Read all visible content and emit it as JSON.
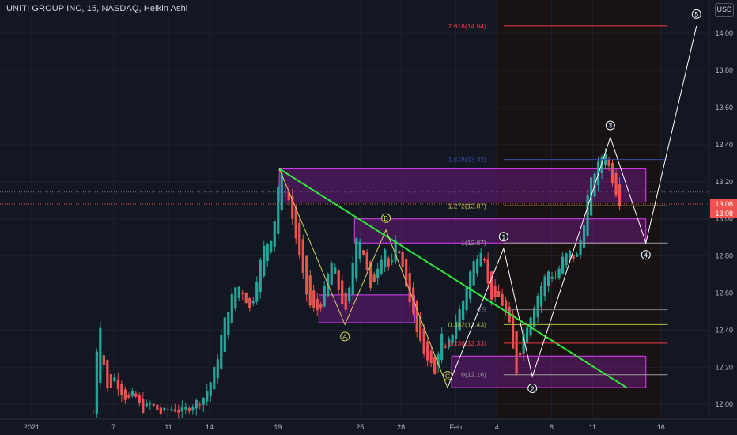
{
  "header": {
    "title": "UNITI GROUP INC, 15, NASDAQ, Heikin Ashi",
    "currency": "USD"
  },
  "colors": {
    "background": "#131722",
    "grid": "#1e222d",
    "up": "#26a69a",
    "down": "#ef5350",
    "trendline": "#2fe63b",
    "zone_fill": "#6a1a7a",
    "zone_stroke": "#e040fb",
    "wave": "#ffffff",
    "corrective": "#d4d45a",
    "fib_2618": "#f23645",
    "fib_1618": "#3949ab",
    "fib_1272": "#c7c74b",
    "fib_1": "#9e9e9e",
    "fib_05": "#787b86",
    "fib_0382": "#a8c040",
    "fib_0236": "#f23645",
    "fib_0": "#9e9e9e",
    "price_label": "#ef5350"
  },
  "chart_data": {
    "type": "candlestick",
    "title": "UNITI GROUP INC, 15, NASDAQ, Heikin Ashi",
    "ylabel": "USD",
    "ylim": [
      11.92,
      14.18
    ],
    "y_ticks": [
      "14.00",
      "13.80",
      "13.60",
      "13.40",
      "13.20",
      "13.00",
      "12.80",
      "12.60",
      "12.40",
      "12.20",
      "12.00"
    ],
    "x_ticks": [
      {
        "label": "2021",
        "t": 0
      },
      {
        "label": "7",
        "t": 6
      },
      {
        "label": "11",
        "t": 10
      },
      {
        "label": "14",
        "t": 13
      },
      {
        "label": "19",
        "t": 18
      },
      {
        "label": "25",
        "t": 24
      },
      {
        "label": "28",
        "t": 27
      },
      {
        "label": "Feb",
        "t": 31
      },
      {
        "label": "4",
        "t": 34
      },
      {
        "label": "8",
        "t": 38
      },
      {
        "label": "11",
        "t": 41
      },
      {
        "label": "16",
        "t": 46
      }
    ],
    "current_prices": [
      "13.08",
      "13.08"
    ],
    "price_path": [
      [
        4.5,
        11.95
      ],
      [
        4.8,
        12.35
      ],
      [
        5.0,
        12.45
      ],
      [
        5.3,
        12.2
      ],
      [
        5.6,
        12.05
      ],
      [
        6.0,
        12.15
      ],
      [
        6.5,
        12.08
      ],
      [
        7.0,
        12.02
      ],
      [
        7.5,
        12.06
      ],
      [
        8.0,
        11.97
      ],
      [
        8.7,
        12.0
      ],
      [
        9.5,
        11.95
      ],
      [
        10.3,
        11.98
      ],
      [
        11.0,
        11.96
      ],
      [
        11.8,
        12.0
      ],
      [
        12.5,
        12.03
      ],
      [
        13.0,
        12.1
      ],
      [
        13.5,
        12.22
      ],
      [
        14.0,
        12.42
      ],
      [
        14.5,
        12.55
      ],
      [
        15.0,
        12.65
      ],
      [
        15.5,
        12.6
      ],
      [
        16.0,
        12.5
      ],
      [
        16.5,
        12.7
      ],
      [
        17.0,
        12.85
      ],
      [
        17.5,
        12.9
      ],
      [
        17.9,
        13.05
      ],
      [
        18.1,
        13.26
      ],
      [
        18.4,
        13.2
      ],
      [
        18.8,
        13.1
      ],
      [
        19.2,
        12.95
      ],
      [
        19.6,
        12.78
      ],
      [
        20.0,
        12.62
      ],
      [
        20.4,
        12.52
      ],
      [
        20.8,
        12.5
      ],
      [
        21.2,
        12.55
      ],
      [
        21.6,
        12.68
      ],
      [
        22.0,
        12.78
      ],
      [
        22.5,
        12.6
      ],
      [
        23.0,
        12.48
      ],
      [
        23.4,
        12.72
      ],
      [
        23.8,
        12.95
      ],
      [
        24.3,
        12.8
      ],
      [
        24.8,
        12.6
      ],
      [
        25.3,
        12.75
      ],
      [
        25.8,
        12.85
      ],
      [
        26.2,
        12.7
      ],
      [
        26.7,
        12.9
      ],
      [
        27.2,
        12.7
      ],
      [
        27.7,
        12.55
      ],
      [
        28.1,
        12.4
      ],
      [
        28.5,
        12.3
      ],
      [
        29.0,
        12.25
      ],
      [
        29.5,
        12.15
      ],
      [
        29.9,
        12.4
      ],
      [
        30.2,
        12.28
      ],
      [
        30.6,
        12.35
      ],
      [
        31.0,
        12.45
      ],
      [
        31.5,
        12.55
      ],
      [
        32.0,
        12.7
      ],
      [
        32.5,
        12.8
      ],
      [
        33.0,
        12.86
      ],
      [
        33.4,
        12.62
      ],
      [
        33.8,
        12.55
      ],
      [
        34.2,
        12.58
      ],
      [
        34.6,
        12.5
      ],
      [
        35.0,
        12.4
      ],
      [
        35.3,
        12.22
      ],
      [
        35.5,
        12.16
      ],
      [
        35.8,
        12.35
      ],
      [
        36.3,
        12.45
      ],
      [
        36.8,
        12.55
      ],
      [
        37.3,
        12.65
      ],
      [
        37.8,
        12.72
      ],
      [
        38.3,
        12.68
      ],
      [
        38.8,
        12.78
      ],
      [
        39.3,
        12.82
      ],
      [
        39.8,
        12.78
      ],
      [
        40.3,
        12.95
      ],
      [
        40.7,
        13.15
      ],
      [
        41.1,
        13.25
      ],
      [
        41.5,
        13.3
      ],
      [
        41.9,
        13.38
      ],
      [
        42.2,
        13.28
      ],
      [
        42.5,
        13.2
      ],
      [
        42.9,
        13.1
      ],
      [
        43.2,
        13.08
      ]
    ],
    "fib_levels": [
      {
        "label": "2.618(14.04)",
        "value": 14.04
      },
      {
        "label": "1.618(13.32)",
        "value": 13.32
      },
      {
        "label": "1.272(13.07)",
        "value": 13.07
      },
      {
        "label": "1(12.87)",
        "value": 12.87
      },
      {
        "label": "0.5",
        "value": 12.51
      },
      {
        "label": "0.382(12.43)",
        "value": 12.43
      },
      {
        "label": "0.236(12.33)",
        "value": 12.33
      },
      {
        "label": "0(12.16)",
        "value": 12.16
      }
    ],
    "zones": [
      {
        "t_start": 18.1,
        "t_end": 44.9,
        "low": 13.09,
        "high": 13.27
      },
      {
        "t_start": 23.6,
        "t_end": 44.9,
        "low": 12.87,
        "high": 13.0
      },
      {
        "t_start": 21.0,
        "t_end": 28.0,
        "low": 12.44,
        "high": 12.59
      },
      {
        "t_start": 30.7,
        "t_end": 44.9,
        "low": 12.09,
        "high": 12.26
      }
    ],
    "trendline": {
      "from": [
        18.1,
        13.27
      ],
      "to": [
        43.5,
        12.09
      ]
    },
    "corrective_wave": [
      {
        "label": "",
        "t": 18.1,
        "v": 13.27
      },
      {
        "label": "A",
        "t": 22.9,
        "v": 12.43
      },
      {
        "label": "B",
        "t": 25.9,
        "v": 12.94
      },
      {
        "label": "C",
        "t": 30.4,
        "v": 12.09
      }
    ],
    "impulse_wave": [
      {
        "label": "",
        "t": 30.4,
        "v": 12.09
      },
      {
        "label": "1",
        "t": 34.5,
        "v": 12.84
      },
      {
        "label": "2",
        "t": 36.6,
        "v": 12.15
      },
      {
        "label": "3",
        "t": 42.3,
        "v": 13.44
      },
      {
        "label": "4",
        "t": 44.9,
        "v": 12.87
      },
      {
        "label": "5",
        "t": 48.6,
        "v": 14.04
      }
    ],
    "fib_line_t_start": 34.5,
    "fib_line_t_end": 46.5,
    "shade_t_start": 34.0,
    "shade_t_end": 46.0
  }
}
